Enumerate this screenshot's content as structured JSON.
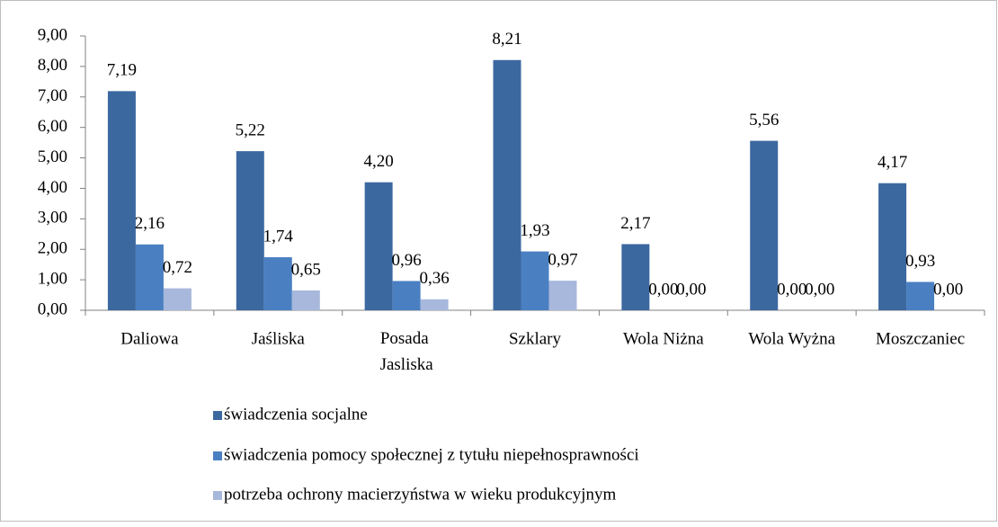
{
  "chart_data": {
    "type": "bar",
    "categories": [
      "Daliowa",
      "Jaśliska",
      "Posada Jasliska",
      "Szklary",
      "Wola Niżna",
      "Wola Wyżna",
      "Moszczaniec"
    ],
    "series": [
      {
        "name": "świadczenia socjalne",
        "color": "#3c68a0",
        "values": [
          7.19,
          5.22,
          4.2,
          8.21,
          2.17,
          5.56,
          4.17
        ],
        "value_labels": [
          "7,19",
          "5,22",
          "4,20",
          "8,21",
          "2,17",
          "5,56",
          "4,17"
        ]
      },
      {
        "name": "świadczenia pomocy społecznej z tytułu niepełnosprawności",
        "color": "#4a80c2",
        "values": [
          2.16,
          1.74,
          0.96,
          1.93,
          0,
          0,
          0.93
        ],
        "value_labels": [
          "2,16",
          "1,74",
          "0,96",
          "1,93",
          "0,00",
          "0,00",
          "0,93"
        ]
      },
      {
        "name": "potrzeba ochrony macierzyństwa w wieku produkcyjnym",
        "color": "#a8b8dc",
        "values": [
          0.72,
          0.65,
          0.36,
          0.97,
          0,
          0,
          0
        ],
        "value_labels": [
          "0,72",
          "0,65",
          "0,36",
          "0,97",
          "0,00",
          "0,00",
          "0,00"
        ]
      }
    ],
    "ylim": [
      0,
      9
    ],
    "yticks": [
      {
        "value": 0,
        "label": "0,00"
      },
      {
        "value": 1,
        "label": "1,00"
      },
      {
        "value": 2,
        "label": "2,00"
      },
      {
        "value": 3,
        "label": "3,00"
      },
      {
        "value": 4,
        "label": "4,00"
      },
      {
        "value": 5,
        "label": "5,00"
      },
      {
        "value": 6,
        "label": "6,00"
      },
      {
        "value": 7,
        "label": "7,00"
      },
      {
        "value": 8,
        "label": "8,00"
      },
      {
        "value": 9,
        "label": "9,00"
      }
    ],
    "legend": "bottom"
  }
}
